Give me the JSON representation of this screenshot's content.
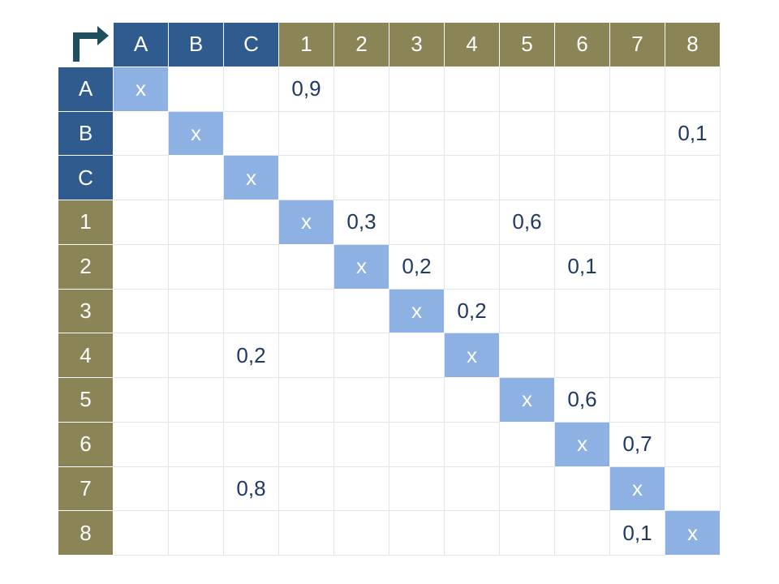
{
  "table": {
    "columns": [
      "A",
      "B",
      "C",
      "1",
      "2",
      "3",
      "4",
      "5",
      "6",
      "7",
      "8"
    ],
    "rows": [
      {
        "label": "A",
        "cells": [
          "x",
          null,
          null,
          "0,9",
          null,
          null,
          null,
          null,
          null,
          null,
          null
        ]
      },
      {
        "label": "B",
        "cells": [
          null,
          "x",
          null,
          null,
          null,
          null,
          null,
          null,
          null,
          null,
          "0,1"
        ]
      },
      {
        "label": "C",
        "cells": [
          null,
          null,
          "x",
          null,
          null,
          null,
          null,
          null,
          null,
          null,
          null
        ]
      },
      {
        "label": "1",
        "cells": [
          null,
          null,
          null,
          "x",
          "0,3",
          null,
          null,
          "0,6",
          null,
          null,
          null
        ]
      },
      {
        "label": "2",
        "cells": [
          null,
          null,
          null,
          null,
          "x",
          "0,2",
          null,
          null,
          "0,1",
          null,
          null
        ]
      },
      {
        "label": "3",
        "cells": [
          null,
          null,
          null,
          null,
          null,
          "x",
          "0,2",
          null,
          null,
          null,
          null
        ]
      },
      {
        "label": "4",
        "cells": [
          null,
          null,
          "0,2",
          null,
          null,
          null,
          "x",
          null,
          null,
          null,
          null
        ]
      },
      {
        "label": "5",
        "cells": [
          null,
          null,
          null,
          null,
          null,
          null,
          null,
          "x",
          "0,6",
          null,
          null
        ]
      },
      {
        "label": "6",
        "cells": [
          null,
          null,
          null,
          null,
          null,
          null,
          null,
          null,
          "x",
          "0,7",
          null
        ]
      },
      {
        "label": "7",
        "cells": [
          null,
          null,
          "0,8",
          null,
          null,
          null,
          null,
          null,
          null,
          "x",
          null
        ]
      },
      {
        "label": "8",
        "cells": [
          null,
          null,
          null,
          null,
          null,
          null,
          null,
          null,
          null,
          "0,1",
          "x"
        ]
      }
    ]
  }
}
